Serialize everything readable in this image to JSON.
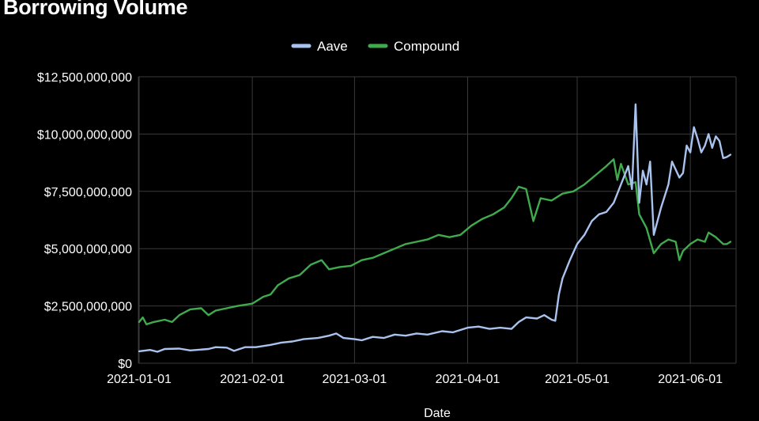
{
  "chart_data": {
    "type": "line",
    "title": "Borrowing Volume",
    "xlabel": "Date",
    "ylabel": "",
    "ylim": [
      0,
      12500000000
    ],
    "xlim": [
      "2021-01-01",
      "2021-06-08"
    ],
    "grid": true,
    "legend_position": "top-center",
    "y_ticks": [
      {
        "value": 0,
        "label": "$0"
      },
      {
        "value": 2500000000,
        "label": "$2,500,000,000"
      },
      {
        "value": 5000000000,
        "label": "$5,000,000,000"
      },
      {
        "value": 7500000000,
        "label": "$7,500,000,000"
      },
      {
        "value": 10000000000,
        "label": "$10,000,000,000"
      },
      {
        "value": 12500000000,
        "label": "$12,500,000,000"
      }
    ],
    "x_ticks": [
      {
        "value": "2021-01-01",
        "label": "2021-01-01"
      },
      {
        "value": "2021-02-01",
        "label": "2021-02-01"
      },
      {
        "value": "2021-03-01",
        "label": "2021-03-01"
      },
      {
        "value": "2021-04-01",
        "label": "2021-04-01"
      },
      {
        "value": "2021-05-01",
        "label": "2021-05-01"
      },
      {
        "value": "2021-06-01",
        "label": "2021-06-01"
      }
    ],
    "series": [
      {
        "name": "Aave",
        "color": "#a9c2ee",
        "points": [
          [
            "2021-01-01",
            520000000
          ],
          [
            "2021-01-04",
            580000000
          ],
          [
            "2021-01-06",
            500000000
          ],
          [
            "2021-01-08",
            620000000
          ],
          [
            "2021-01-12",
            640000000
          ],
          [
            "2021-01-15",
            560000000
          ],
          [
            "2021-01-20",
            620000000
          ],
          [
            "2021-01-22",
            700000000
          ],
          [
            "2021-01-25",
            680000000
          ],
          [
            "2021-01-27",
            540000000
          ],
          [
            "2021-01-30",
            700000000
          ],
          [
            "2021-02-02",
            700000000
          ],
          [
            "2021-02-06",
            800000000
          ],
          [
            "2021-02-09",
            900000000
          ],
          [
            "2021-02-12",
            950000000
          ],
          [
            "2021-02-15",
            1050000000
          ],
          [
            "2021-02-19",
            1100000000
          ],
          [
            "2021-02-22",
            1200000000
          ],
          [
            "2021-02-24",
            1300000000
          ],
          [
            "2021-02-26",
            1100000000
          ],
          [
            "2021-03-01",
            1050000000
          ],
          [
            "2021-03-03",
            1000000000
          ],
          [
            "2021-03-06",
            1150000000
          ],
          [
            "2021-03-09",
            1100000000
          ],
          [
            "2021-03-12",
            1250000000
          ],
          [
            "2021-03-15",
            1200000000
          ],
          [
            "2021-03-18",
            1300000000
          ],
          [
            "2021-03-21",
            1250000000
          ],
          [
            "2021-03-25",
            1400000000
          ],
          [
            "2021-03-28",
            1350000000
          ],
          [
            "2021-04-01",
            1550000000
          ],
          [
            "2021-04-04",
            1600000000
          ],
          [
            "2021-04-07",
            1500000000
          ],
          [
            "2021-04-10",
            1550000000
          ],
          [
            "2021-04-13",
            1500000000
          ],
          [
            "2021-04-15",
            1800000000
          ],
          [
            "2021-04-17",
            2000000000
          ],
          [
            "2021-04-20",
            1950000000
          ],
          [
            "2021-04-22",
            2100000000
          ],
          [
            "2021-04-24",
            1900000000
          ],
          [
            "2021-04-25",
            1850000000
          ],
          [
            "2021-04-26",
            3000000000
          ],
          [
            "2021-04-27",
            3700000000
          ],
          [
            "2021-04-29",
            4500000000
          ],
          [
            "2021-05-01",
            5200000000
          ],
          [
            "2021-05-03",
            5600000000
          ],
          [
            "2021-05-05",
            6200000000
          ],
          [
            "2021-05-07",
            6500000000
          ],
          [
            "2021-05-09",
            6600000000
          ],
          [
            "2021-05-11",
            7000000000
          ],
          [
            "2021-05-13",
            7800000000
          ],
          [
            "2021-05-15",
            8600000000
          ],
          [
            "2021-05-16",
            7600000000
          ],
          [
            "2021-05-17",
            11300000000
          ],
          [
            "2021-05-18",
            7000000000
          ],
          [
            "2021-05-19",
            8400000000
          ],
          [
            "2021-05-20",
            7800000000
          ],
          [
            "2021-05-21",
            8800000000
          ],
          [
            "2021-05-22",
            5600000000
          ],
          [
            "2021-05-24",
            6800000000
          ],
          [
            "2021-05-26",
            7800000000
          ],
          [
            "2021-05-27",
            8800000000
          ],
          [
            "2021-05-29",
            8100000000
          ],
          [
            "2021-05-30",
            8300000000
          ],
          [
            "2021-05-31",
            9500000000
          ],
          [
            "2021-06-01",
            9200000000
          ],
          [
            "2021-06-02",
            10300000000
          ],
          [
            "2021-06-03",
            9800000000
          ],
          [
            "2021-06-04",
            9200000000
          ],
          [
            "2021-06-05",
            9500000000
          ],
          [
            "2021-06-06",
            10000000000
          ],
          [
            "2021-06-07",
            9400000000
          ],
          [
            "2021-06-08",
            9900000000
          ],
          [
            "2021-06-09",
            9700000000
          ],
          [
            "2021-06-10",
            8950000000
          ],
          [
            "2021-06-11",
            9000000000
          ],
          [
            "2021-06-12",
            9100000000
          ]
        ]
      },
      {
        "name": "Compound",
        "color": "#3fab4d",
        "points": [
          [
            "2021-01-01",
            1800000000
          ],
          [
            "2021-01-02",
            2000000000
          ],
          [
            "2021-01-03",
            1700000000
          ],
          [
            "2021-01-05",
            1800000000
          ],
          [
            "2021-01-08",
            1900000000
          ],
          [
            "2021-01-10",
            1800000000
          ],
          [
            "2021-01-12",
            2100000000
          ],
          [
            "2021-01-15",
            2350000000
          ],
          [
            "2021-01-18",
            2400000000
          ],
          [
            "2021-01-20",
            2100000000
          ],
          [
            "2021-01-22",
            2300000000
          ],
          [
            "2021-01-25",
            2400000000
          ],
          [
            "2021-01-28",
            2500000000
          ],
          [
            "2021-02-01",
            2600000000
          ],
          [
            "2021-02-04",
            2900000000
          ],
          [
            "2021-02-06",
            3000000000
          ],
          [
            "2021-02-08",
            3400000000
          ],
          [
            "2021-02-11",
            3700000000
          ],
          [
            "2021-02-14",
            3850000000
          ],
          [
            "2021-02-17",
            4300000000
          ],
          [
            "2021-02-20",
            4500000000
          ],
          [
            "2021-02-22",
            4100000000
          ],
          [
            "2021-02-25",
            4200000000
          ],
          [
            "2021-02-28",
            4250000000
          ],
          [
            "2021-03-03",
            4500000000
          ],
          [
            "2021-03-06",
            4600000000
          ],
          [
            "2021-03-09",
            4800000000
          ],
          [
            "2021-03-12",
            5000000000
          ],
          [
            "2021-03-15",
            5200000000
          ],
          [
            "2021-03-18",
            5300000000
          ],
          [
            "2021-03-21",
            5400000000
          ],
          [
            "2021-03-24",
            5600000000
          ],
          [
            "2021-03-27",
            5500000000
          ],
          [
            "2021-03-30",
            5600000000
          ],
          [
            "2021-04-02",
            6000000000
          ],
          [
            "2021-04-05",
            6300000000
          ],
          [
            "2021-04-08",
            6500000000
          ],
          [
            "2021-04-11",
            6800000000
          ],
          [
            "2021-04-13",
            7200000000
          ],
          [
            "2021-04-15",
            7700000000
          ],
          [
            "2021-04-17",
            7600000000
          ],
          [
            "2021-04-19",
            6200000000
          ],
          [
            "2021-04-21",
            7200000000
          ],
          [
            "2021-04-24",
            7100000000
          ],
          [
            "2021-04-27",
            7400000000
          ],
          [
            "2021-04-30",
            7500000000
          ],
          [
            "2021-05-03",
            7800000000
          ],
          [
            "2021-05-06",
            8200000000
          ],
          [
            "2021-05-09",
            8600000000
          ],
          [
            "2021-05-11",
            8900000000
          ],
          [
            "2021-05-12",
            8000000000
          ],
          [
            "2021-05-13",
            8700000000
          ],
          [
            "2021-05-15",
            7800000000
          ],
          [
            "2021-05-17",
            7900000000
          ],
          [
            "2021-05-18",
            6500000000
          ],
          [
            "2021-05-20",
            5900000000
          ],
          [
            "2021-05-22",
            4800000000
          ],
          [
            "2021-05-24",
            5200000000
          ],
          [
            "2021-05-26",
            5400000000
          ],
          [
            "2021-05-28",
            5300000000
          ],
          [
            "2021-05-29",
            4500000000
          ],
          [
            "2021-05-30",
            4900000000
          ],
          [
            "2021-06-01",
            5200000000
          ],
          [
            "2021-06-03",
            5400000000
          ],
          [
            "2021-06-05",
            5300000000
          ],
          [
            "2021-06-06",
            5700000000
          ],
          [
            "2021-06-08",
            5500000000
          ],
          [
            "2021-06-10",
            5200000000
          ],
          [
            "2021-06-11",
            5200000000
          ],
          [
            "2021-06-12",
            5300000000
          ]
        ]
      }
    ]
  }
}
